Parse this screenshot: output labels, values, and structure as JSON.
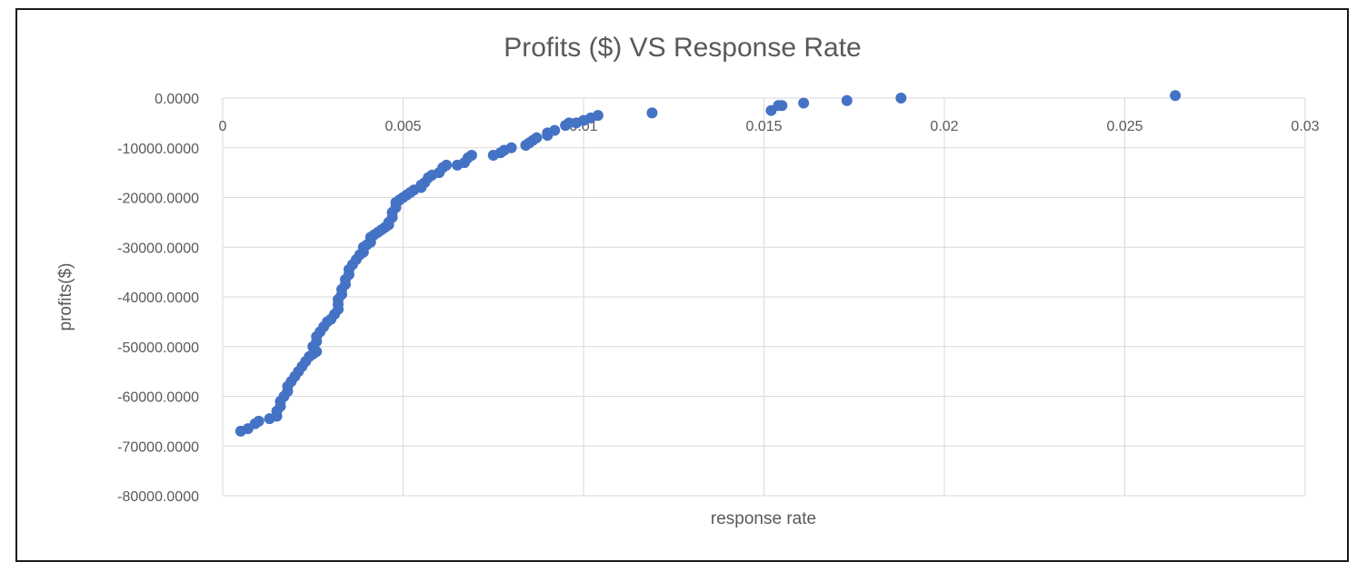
{
  "chart_data": {
    "type": "scatter",
    "title": "Profits ($) VS Response Rate",
    "xlabel": "response rate",
    "ylabel": "profits($)",
    "xlim": [
      0,
      0.03
    ],
    "ylim": [
      -80000,
      0
    ],
    "x_ticks": [
      0,
      0.005,
      0.01,
      0.015,
      0.02,
      0.025,
      0.03
    ],
    "x_tick_labels": [
      "0",
      "0.005",
      "0.01",
      "0.015",
      "0.02",
      "0.025",
      "0.03"
    ],
    "y_ticks": [
      0,
      -10000,
      -20000,
      -30000,
      -40000,
      -50000,
      -60000,
      -70000,
      -80000
    ],
    "y_tick_labels": [
      "0.0000",
      "-10000.0000",
      "-20000.0000",
      "-30000.0000",
      "-40000.0000",
      "-50000.0000",
      "-60000.0000",
      "-70000.0000",
      "-80000.0000"
    ],
    "grid": true,
    "legend": "none",
    "color": "#4472c4",
    "series": [
      {
        "points": [
          [
            0.0005,
            -67000
          ],
          [
            0.0007,
            -66500
          ],
          [
            0.0009,
            -65500
          ],
          [
            0.001,
            -65000
          ],
          [
            0.0013,
            -64500
          ],
          [
            0.0015,
            -64000
          ],
          [
            0.0015,
            -63000
          ],
          [
            0.0016,
            -62000
          ],
          [
            0.0016,
            -61000
          ],
          [
            0.0017,
            -60000
          ],
          [
            0.0018,
            -59000
          ],
          [
            0.0018,
            -58000
          ],
          [
            0.0019,
            -57000
          ],
          [
            0.002,
            -56000
          ],
          [
            0.0021,
            -55000
          ],
          [
            0.0022,
            -54000
          ],
          [
            0.0023,
            -53000
          ],
          [
            0.0024,
            -52000
          ],
          [
            0.0025,
            -51500
          ],
          [
            0.0026,
            -51000
          ],
          [
            0.0025,
            -50000
          ],
          [
            0.0026,
            -49000
          ],
          [
            0.0026,
            -48000
          ],
          [
            0.0027,
            -47000
          ],
          [
            0.0028,
            -46000
          ],
          [
            0.0029,
            -45000
          ],
          [
            0.003,
            -44500
          ],
          [
            0.0031,
            -43500
          ],
          [
            0.0032,
            -42500
          ],
          [
            0.0032,
            -41500
          ],
          [
            0.0032,
            -40500
          ],
          [
            0.0033,
            -39500
          ],
          [
            0.0033,
            -38500
          ],
          [
            0.0034,
            -37500
          ],
          [
            0.0034,
            -36500
          ],
          [
            0.0035,
            -35500
          ],
          [
            0.0035,
            -34500
          ],
          [
            0.0036,
            -33500
          ],
          [
            0.0037,
            -32500
          ],
          [
            0.0038,
            -31500
          ],
          [
            0.0039,
            -31000
          ],
          [
            0.0039,
            -30000
          ],
          [
            0.004,
            -29500
          ],
          [
            0.0041,
            -29000
          ],
          [
            0.0041,
            -28000
          ],
          [
            0.0042,
            -27500
          ],
          [
            0.0043,
            -27000
          ],
          [
            0.0044,
            -26500
          ],
          [
            0.0045,
            -26000
          ],
          [
            0.0046,
            -25500
          ],
          [
            0.0046,
            -25000
          ],
          [
            0.0047,
            -24000
          ],
          [
            0.0047,
            -23000
          ],
          [
            0.0048,
            -22000
          ],
          [
            0.0048,
            -21000
          ],
          [
            0.0049,
            -20500
          ],
          [
            0.005,
            -20000
          ],
          [
            0.0051,
            -19500
          ],
          [
            0.0052,
            -19000
          ],
          [
            0.0053,
            -18500
          ],
          [
            0.0055,
            -18000
          ],
          [
            0.0055,
            -17500
          ],
          [
            0.0056,
            -17000
          ],
          [
            0.0057,
            -16000
          ],
          [
            0.0058,
            -15500
          ],
          [
            0.006,
            -15000
          ],
          [
            0.0061,
            -14000
          ],
          [
            0.0062,
            -13500
          ],
          [
            0.0065,
            -13500
          ],
          [
            0.0067,
            -13000
          ],
          [
            0.0068,
            -12000
          ],
          [
            0.0069,
            -11500
          ],
          [
            0.0075,
            -11500
          ],
          [
            0.0077,
            -11000
          ],
          [
            0.0078,
            -10500
          ],
          [
            0.008,
            -10000
          ],
          [
            0.0084,
            -9500
          ],
          [
            0.0085,
            -9000
          ],
          [
            0.0086,
            -8500
          ],
          [
            0.0087,
            -8000
          ],
          [
            0.009,
            -7500
          ],
          [
            0.009,
            -7000
          ],
          [
            0.0092,
            -6500
          ],
          [
            0.0095,
            -5500
          ],
          [
            0.0096,
            -5000
          ],
          [
            0.0098,
            -5000
          ],
          [
            0.01,
            -4500
          ],
          [
            0.0102,
            -4000
          ],
          [
            0.0104,
            -3500
          ],
          [
            0.0119,
            -3000
          ],
          [
            0.0152,
            -2500
          ],
          [
            0.0154,
            -1500
          ],
          [
            0.0155,
            -1500
          ],
          [
            0.0161,
            -1000
          ],
          [
            0.0173,
            -500
          ],
          [
            0.0188,
            0
          ],
          [
            0.0264,
            500
          ]
        ]
      }
    ]
  }
}
